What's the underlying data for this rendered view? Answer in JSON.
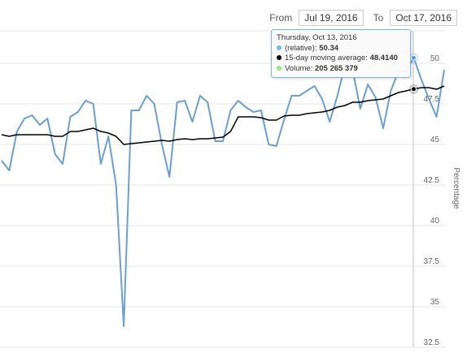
{
  "range_selector": {
    "from_label": "From",
    "from_value": "Jul 19, 2016",
    "to_label": "To",
    "to_value": "Oct 17, 2016"
  },
  "tooltip": {
    "date": "Thursday, Oct 13, 2016",
    "rows": [
      {
        "name": "(relative)",
        "sep": ": ",
        "value": "50.34",
        "color": "#7cb5ec"
      },
      {
        "name": "15-day moving average",
        "sep": ": ",
        "value": "48.4140",
        "color": "#000000"
      },
      {
        "name": "Volume",
        "sep": ": ",
        "value": "205 265 379",
        "color": "#90ed7d"
      }
    ]
  },
  "chart_data": {
    "type": "line",
    "title": "",
    "xlabel": "",
    "ylabel": "Percentage",
    "ylim": [
      32.5,
      52
    ],
    "yticks": [
      32.5,
      35,
      37.5,
      40,
      42.5,
      45,
      47.5,
      50
    ],
    "grid": true,
    "y_axis_side": "right",
    "x_start": "2016-07-19",
    "x_end": "2016-10-17",
    "crosshair_date": "2016-10-13",
    "series": [
      {
        "name": "(relative)",
        "color": "#6a9fd0",
        "values": [
          44.0,
          43.4,
          45.8,
          46.6,
          46.8,
          46.2,
          46.6,
          44.4,
          43.8,
          46.7,
          47.0,
          47.7,
          47.5,
          43.8,
          45.5,
          42.5,
          33.8,
          47.1,
          47.1,
          48.0,
          47.5,
          45.0,
          43.0,
          47.6,
          47.7,
          46.4,
          48.0,
          47.6,
          45.2,
          45.2,
          47.1,
          47.7,
          47.3,
          47.0,
          47.1,
          45.0,
          44.9,
          46.5,
          48.0,
          48.0,
          48.3,
          48.6,
          47.8,
          46.4,
          48.0,
          49.9,
          49.6,
          47.2,
          48.7,
          47.9,
          46.0,
          48.3,
          49.5,
          49.5,
          50.34,
          49.0,
          47.8,
          46.7,
          49.6
        ]
      },
      {
        "name": "15-day moving average",
        "color": "#000000",
        "values": [
          45.6,
          45.5,
          45.6,
          45.6,
          45.6,
          45.6,
          45.6,
          45.5,
          45.5,
          45.8,
          45.8,
          45.9,
          46.0,
          45.8,
          45.7,
          45.5,
          45.0,
          45.05,
          45.1,
          45.15,
          45.2,
          45.25,
          45.2,
          45.3,
          45.35,
          45.3,
          45.35,
          45.35,
          45.4,
          45.45,
          45.8,
          46.7,
          46.7,
          46.7,
          46.65,
          46.5,
          46.5,
          46.75,
          46.8,
          46.8,
          46.9,
          46.95,
          47.0,
          47.1,
          47.3,
          47.4,
          47.6,
          47.6,
          47.7,
          47.75,
          47.8,
          48.0,
          48.2,
          48.3,
          48.414,
          48.5,
          48.5,
          48.4,
          48.6
        ]
      }
    ]
  }
}
